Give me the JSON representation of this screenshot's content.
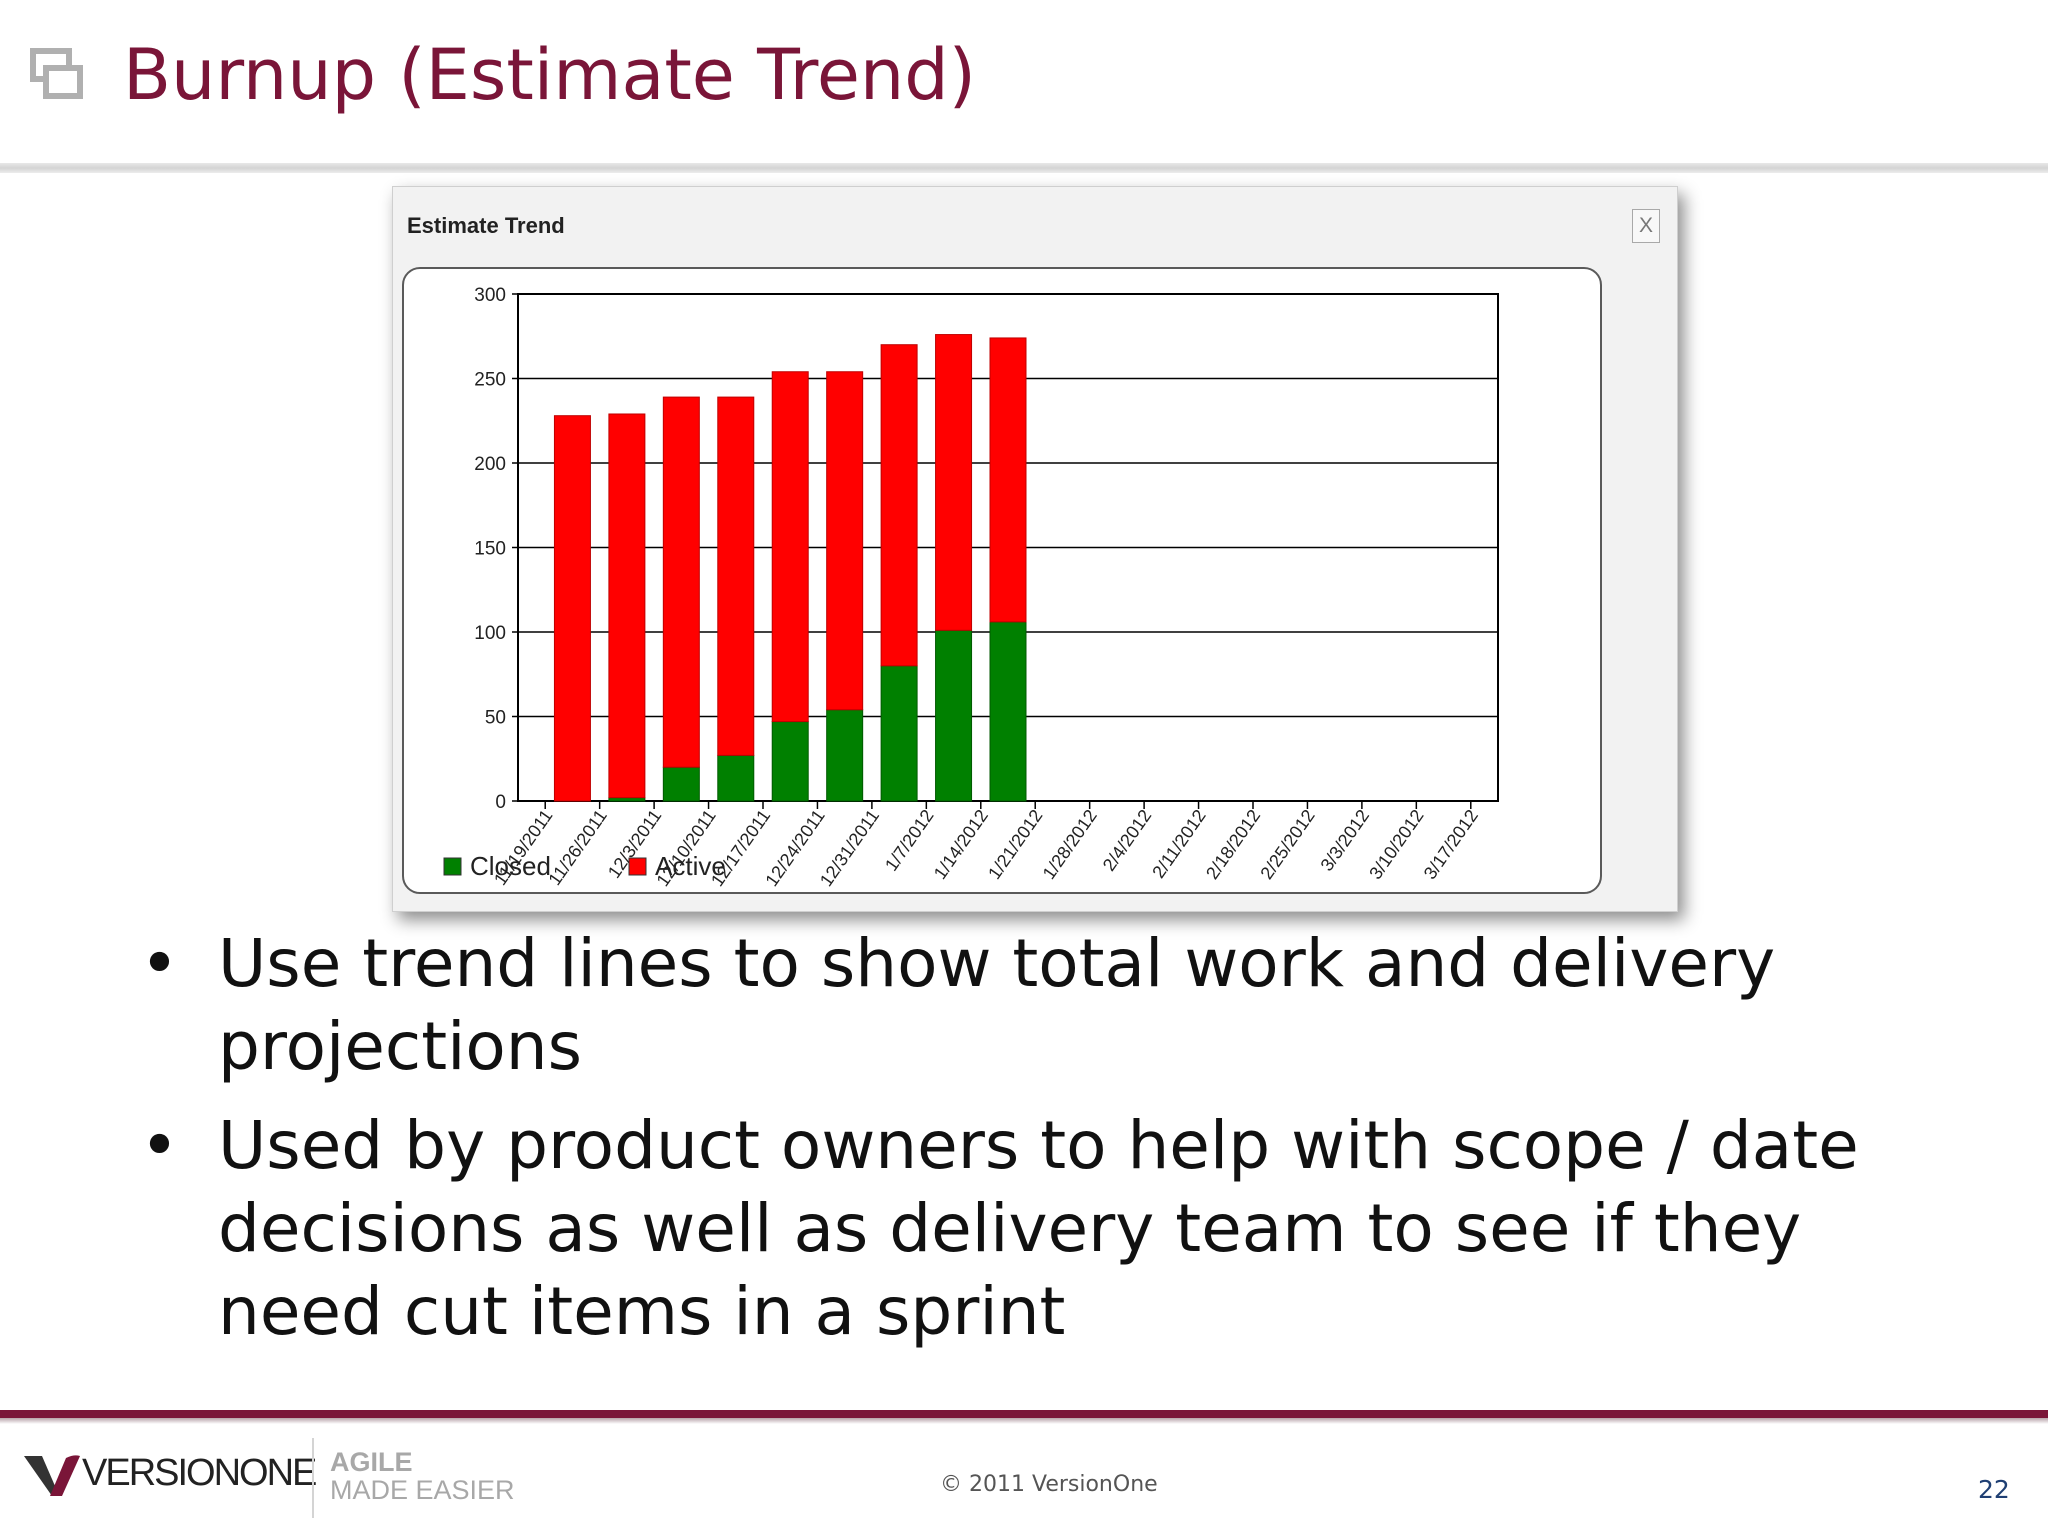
{
  "slide": {
    "title": "Burnup (Estimate Trend)",
    "title_icon": "windows-stack-icon",
    "title_color": "#7a1538"
  },
  "widget": {
    "title": "Estimate Trend",
    "close_label": "X"
  },
  "chart_data": {
    "type": "bar",
    "stacked": true,
    "categories": [
      "11/19/2011",
      "11/26/2011",
      "12/3/2011",
      "12/10/2011",
      "12/17/2011",
      "12/24/2011",
      "12/31/2011",
      "1/7/2012",
      "1/14/2012",
      "1/21/2012",
      "1/28/2012",
      "2/4/2012",
      "2/11/2012",
      "2/18/2012",
      "2/25/2012",
      "3/3/2012",
      "3/10/2012",
      "3/17/2012"
    ],
    "series": [
      {
        "name": "Closed",
        "color": "#008000",
        "values": [
          0,
          2,
          20,
          27,
          47,
          54,
          80,
          101,
          106,
          null,
          null,
          null,
          null,
          null,
          null,
          null,
          null,
          null
        ]
      },
      {
        "name": "Active",
        "color": "#ff0000",
        "values": [
          228,
          227,
          219,
          212,
          207,
          200,
          190,
          175,
          168,
          null,
          null,
          null,
          null,
          null,
          null,
          null,
          null,
          null
        ]
      }
    ],
    "yticks": [
      0,
      50,
      100,
      150,
      200,
      250,
      300
    ],
    "ylim": [
      0,
      300
    ],
    "grid": true,
    "legend": "bottom-left"
  },
  "bullets": [
    "Use trend lines to show total work and delivery projections",
    "Used by product owners to help with  scope / date decisions as well as delivery team to see if they need cut items in a sprint"
  ],
  "footer": {
    "logo_text": "VERSIONONE",
    "logo_icon": "versionone-v-icon",
    "tagline_line1": "AGILE",
    "tagline_line2": "MADE EASIER",
    "copyright": "© 2011 VersionOne",
    "page_number": "22"
  }
}
